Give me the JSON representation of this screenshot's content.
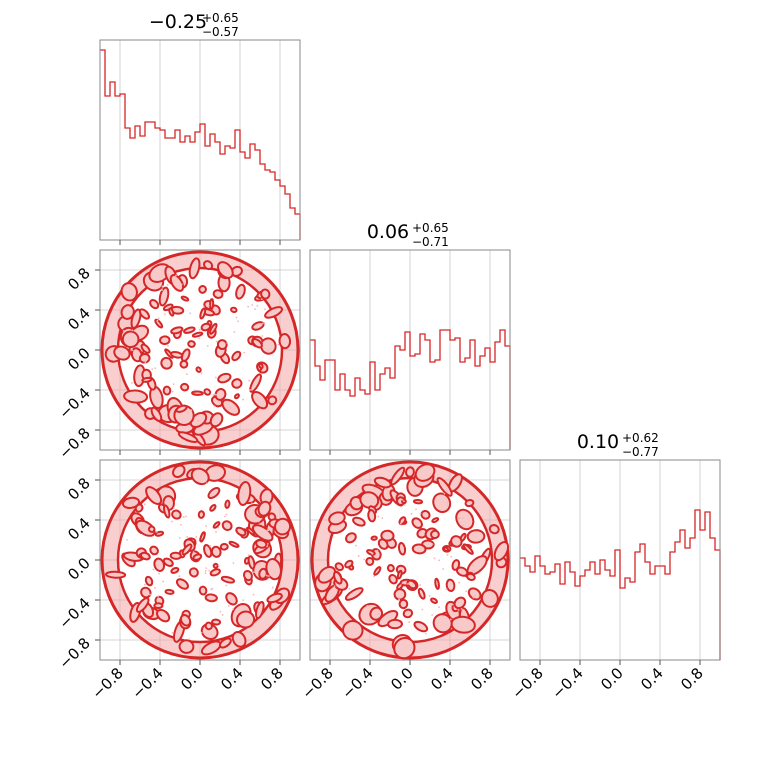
{
  "colors": {
    "accent": "#d62728",
    "grid": "#c8c8c8",
    "frame": "#8a8a8a"
  },
  "chart_data": {
    "type": "corner",
    "parameters": [
      {
        "title": "-0.25",
        "upper": "+0.65",
        "lower": "-0.57"
      },
      {
        "title": "0.06",
        "upper": "+0.65",
        "lower": "-0.71"
      },
      {
        "title": "0.10",
        "upper": "+0.62",
        "lower": "-0.77"
      }
    ],
    "range": [
      -1,
      1
    ],
    "ticks": [
      -0.8,
      -0.4,
      0.0,
      0.4,
      0.8
    ],
    "tick_labels": [
      "−0.8",
      "−0.4",
      "0.0",
      "0.4",
      "0.8"
    ],
    "grid": true,
    "histograms": [
      {
        "bins": 40,
        "values": [
          0.95,
          0.72,
          0.79,
          0.72,
          0.73,
          0.56,
          0.51,
          0.57,
          0.52,
          0.59,
          0.59,
          0.56,
          0.55,
          0.51,
          0.51,
          0.55,
          0.49,
          0.52,
          0.49,
          0.54,
          0.58,
          0.47,
          0.53,
          0.49,
          0.43,
          0.47,
          0.46,
          0.55,
          0.44,
          0.41,
          0.48,
          0.45,
          0.38,
          0.35,
          0.34,
          0.3,
          0.27,
          0.23,
          0.16,
          0.13
        ]
      },
      {
        "bins": 40,
        "values": [
          0.55,
          0.42,
          0.35,
          0.45,
          0.45,
          0.3,
          0.38,
          0.3,
          0.27,
          0.36,
          0.3,
          0.28,
          0.44,
          0.3,
          0.38,
          0.41,
          0.36,
          0.52,
          0.5,
          0.59,
          0.47,
          0.48,
          0.58,
          0.55,
          0.44,
          0.45,
          0.6,
          0.6,
          0.55,
          0.56,
          0.44,
          0.46,
          0.55,
          0.42,
          0.47,
          0.51,
          0.44,
          0.54,
          0.6,
          0.52
        ]
      },
      {
        "bins": 40,
        "values": [
          0.51,
          0.47,
          0.44,
          0.52,
          0.47,
          0.43,
          0.44,
          0.48,
          0.38,
          0.49,
          0.44,
          0.37,
          0.42,
          0.45,
          0.49,
          0.43,
          0.5,
          0.45,
          0.42,
          0.55,
          0.36,
          0.41,
          0.39,
          0.54,
          0.58,
          0.49,
          0.43,
          0.47,
          0.47,
          0.43,
          0.54,
          0.59,
          0.65,
          0.56,
          0.61,
          0.75,
          0.65,
          0.74,
          0.61,
          0.55
        ]
      }
    ],
    "scatter_panels": [
      {
        "x_param": 0,
        "y_param": 1
      },
      {
        "x_param": 0,
        "y_param": 2
      },
      {
        "x_param": 1,
        "y_param": 2
      }
    ]
  }
}
